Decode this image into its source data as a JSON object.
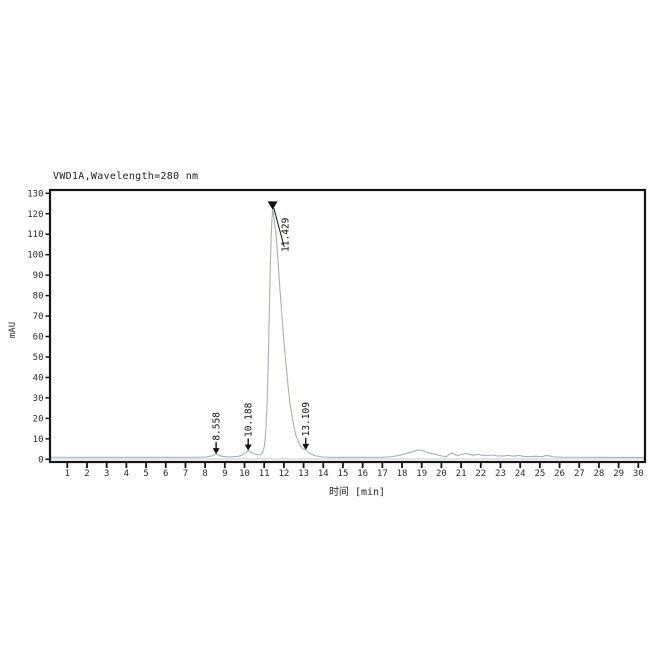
{
  "page": {
    "background": "#ffffff"
  },
  "chart_data": {
    "type": "line",
    "title": "VWD1A,Wavelength=280 nm",
    "xlabel": "时间 [min]",
    "ylabel": "mAU",
    "xlim": [
      0.12,
      30.34
    ],
    "ylim": [
      0,
      130
    ],
    "x_ticks": [
      1,
      2,
      3,
      4,
      5,
      6,
      7,
      8,
      9,
      10,
      11,
      12,
      13,
      14,
      15,
      16,
      17,
      18,
      19,
      20,
      21,
      22,
      23,
      24,
      25,
      26,
      27,
      28,
      29,
      30
    ],
    "y_ticks": [
      0,
      10,
      20,
      30,
      40,
      50,
      60,
      70,
      80,
      90,
      100,
      110,
      120,
      130
    ],
    "grid": false,
    "legend_position": "none",
    "line_color": "#a9aeb6",
    "baseline_color": "#c6cad0",
    "frame_color": "#141414",
    "text_color": "#2b2b2b",
    "annotation_color": "#111111",
    "baseline_mau": 0.15,
    "series": [
      {
        "name": "VWD1A 280 nm signal",
        "points": [
          [
            0.12,
            1.0
          ],
          [
            1,
            1.0
          ],
          [
            2,
            0.95
          ],
          [
            3,
            0.95
          ],
          [
            4,
            0.95
          ],
          [
            5,
            0.95
          ],
          [
            6,
            0.95
          ],
          [
            7,
            1.0
          ],
          [
            7.6,
            1.0
          ],
          [
            8.0,
            1.1
          ],
          [
            8.25,
            1.4
          ],
          [
            8.4,
            1.9
          ],
          [
            8.558,
            2.5
          ],
          [
            8.72,
            1.9
          ],
          [
            8.9,
            1.4
          ],
          [
            9.1,
            1.2
          ],
          [
            9.4,
            1.2
          ],
          [
            9.65,
            1.4
          ],
          [
            9.85,
            1.9
          ],
          [
            10.05,
            3.1
          ],
          [
            10.188,
            4.3
          ],
          [
            10.35,
            3.3
          ],
          [
            10.5,
            2.7
          ],
          [
            10.65,
            2.3
          ],
          [
            10.78,
            2.1
          ],
          [
            10.9,
            3.0
          ],
          [
            11.0,
            6.0
          ],
          [
            11.05,
            10
          ],
          [
            11.1,
            17
          ],
          [
            11.15,
            28
          ],
          [
            11.2,
            45
          ],
          [
            11.25,
            67
          ],
          [
            11.3,
            90
          ],
          [
            11.35,
            108
          ],
          [
            11.39,
            117
          ],
          [
            11.429,
            122
          ],
          [
            11.47,
            120
          ],
          [
            11.52,
            116
          ],
          [
            11.6,
            110
          ],
          [
            11.7,
            97
          ],
          [
            11.8,
            83
          ],
          [
            11.9,
            70
          ],
          [
            12.0,
            58
          ],
          [
            12.1,
            47
          ],
          [
            12.2,
            37
          ],
          [
            12.3,
            28
          ],
          [
            12.45,
            19
          ],
          [
            12.6,
            12
          ],
          [
            12.8,
            7.0
          ],
          [
            12.95,
            5.2
          ],
          [
            13.109,
            4.6
          ],
          [
            13.3,
            3.0
          ],
          [
            13.55,
            1.8
          ],
          [
            13.9,
            1.2
          ],
          [
            14.3,
            1.0
          ],
          [
            15,
            0.95
          ],
          [
            16,
            0.95
          ],
          [
            17,
            1.0
          ],
          [
            17.5,
            1.3
          ],
          [
            17.9,
            2.0
          ],
          [
            18.3,
            3.1
          ],
          [
            18.6,
            3.9
          ],
          [
            18.85,
            4.6
          ],
          [
            19.1,
            4.1
          ],
          [
            19.4,
            3.1
          ],
          [
            19.7,
            2.3
          ],
          [
            20.0,
            1.7
          ],
          [
            20.25,
            1.2
          ],
          [
            20.4,
            2.5
          ],
          [
            20.55,
            3.1
          ],
          [
            20.7,
            2.2
          ],
          [
            20.85,
            1.9
          ],
          [
            21.05,
            2.4
          ],
          [
            21.25,
            2.9
          ],
          [
            21.45,
            2.3
          ],
          [
            21.65,
            2.0
          ],
          [
            21.85,
            2.4
          ],
          [
            22.05,
            2.0
          ],
          [
            22.3,
            1.8
          ],
          [
            22.55,
            2.1
          ],
          [
            22.8,
            1.7
          ],
          [
            23.1,
            1.6
          ],
          [
            23.4,
            1.9
          ],
          [
            23.7,
            1.5
          ],
          [
            23.95,
            1.9
          ],
          [
            24.2,
            1.4
          ],
          [
            24.5,
            1.3
          ],
          [
            24.8,
            1.5
          ],
          [
            25.1,
            1.3
          ],
          [
            25.35,
            1.9
          ],
          [
            25.7,
            1.2
          ],
          [
            26.2,
            1.0
          ],
          [
            27,
            1.0
          ],
          [
            28,
            0.95
          ],
          [
            29,
            0.9
          ],
          [
            30,
            0.9
          ],
          [
            30.3,
            0.9
          ]
        ]
      }
    ],
    "peaks": [
      {
        "label": "8.558",
        "time": 8.558,
        "height_mau": 2.5,
        "marker": "down-arrow"
      },
      {
        "label": "10.188",
        "time": 10.188,
        "height_mau": 4.3,
        "marker": "down-arrow"
      },
      {
        "label": "11.429",
        "time": 11.429,
        "height_mau": 122,
        "marker": "apex-triangle"
      },
      {
        "label": "13.109",
        "time": 13.109,
        "height_mau": 4.6,
        "marker": "down-arrow"
      }
    ]
  }
}
